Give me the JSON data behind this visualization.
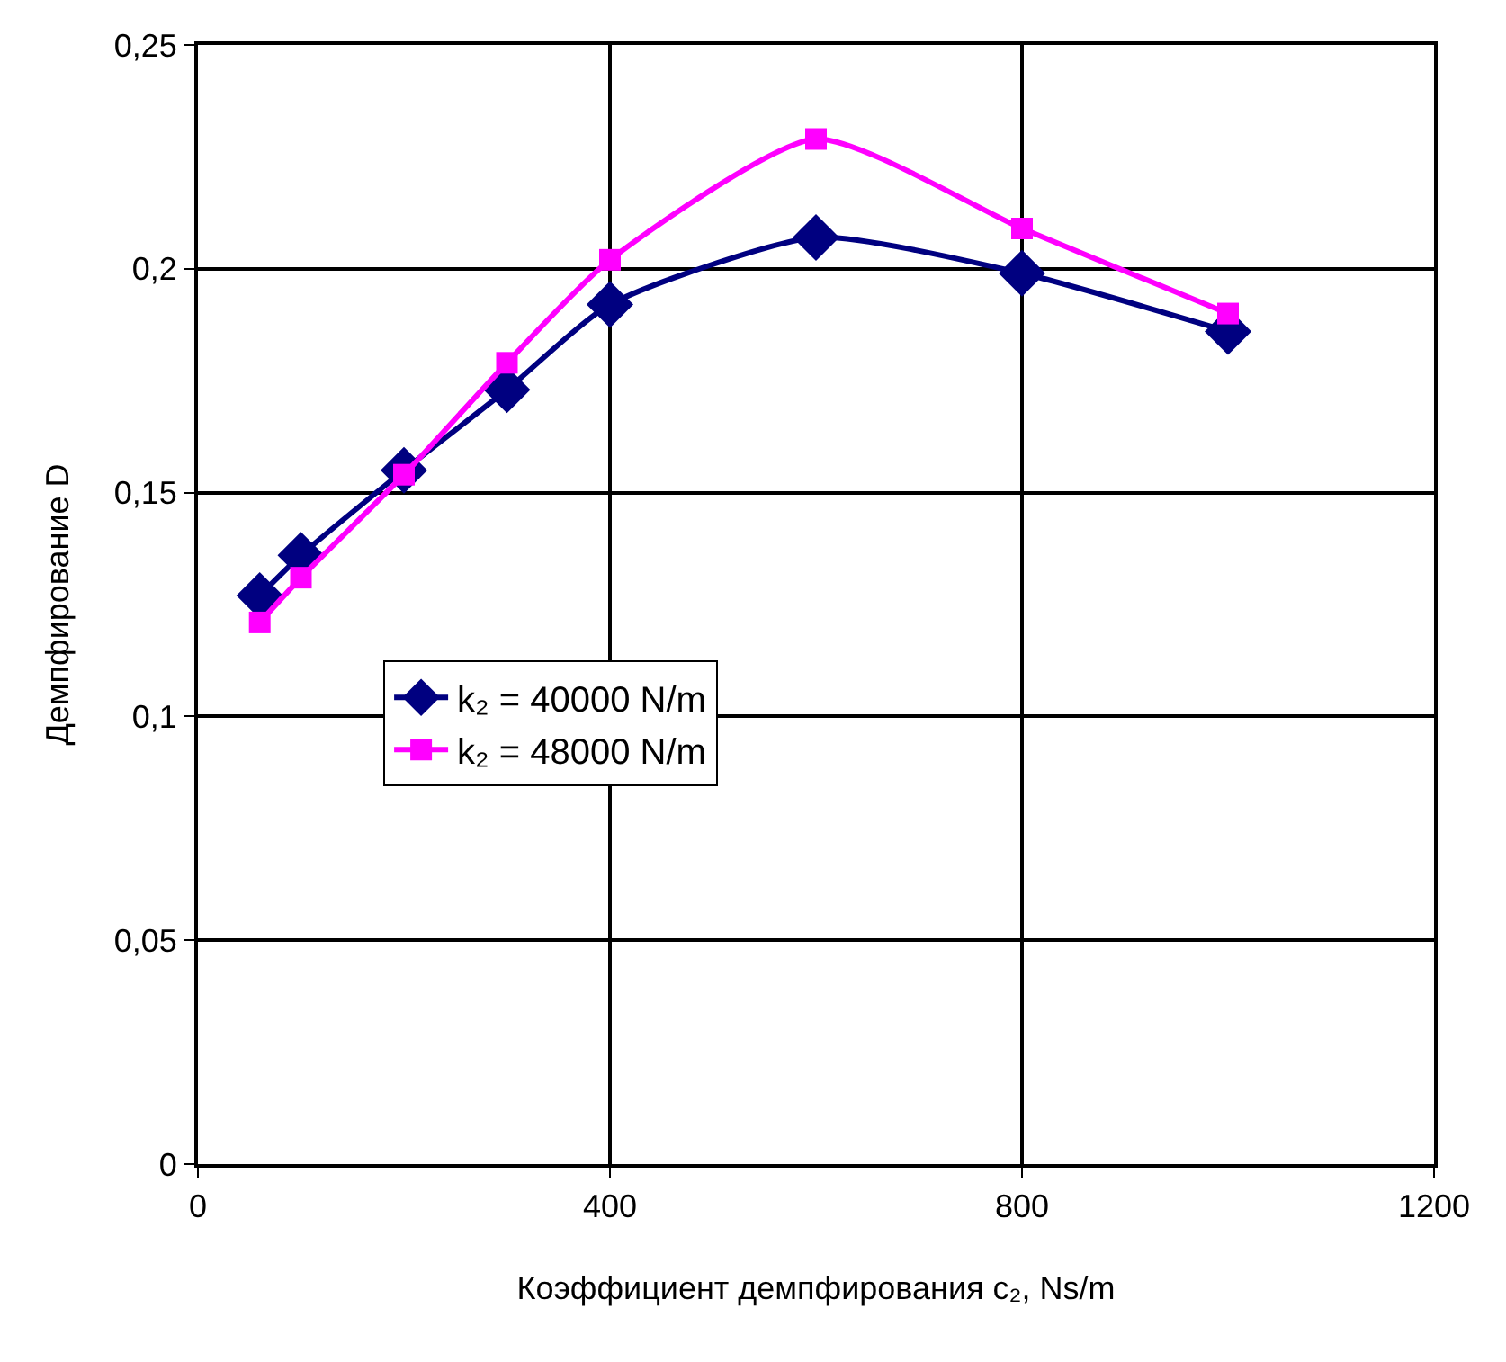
{
  "chart_data": {
    "type": "line",
    "xlabel": "Коэффициент демпфирования c₂, Ns/m",
    "ylabel": "Демпфирование D",
    "x": [
      60,
      100,
      200,
      300,
      400,
      600,
      800,
      1000
    ],
    "series": [
      {
        "name": "k₂ = 40000 N/m",
        "color": "#000080",
        "marker": "diamond",
        "values": [
          0.127,
          0.136,
          0.155,
          0.173,
          0.192,
          0.207,
          0.199,
          0.186
        ]
      },
      {
        "name": "k₂ = 48000 N/m",
        "color": "#ff00ff",
        "marker": "square",
        "values": [
          0.121,
          0.131,
          0.154,
          0.179,
          0.202,
          0.229,
          0.209,
          0.19
        ]
      }
    ],
    "xlim": [
      0,
      1200
    ],
    "xticks": [
      0,
      400,
      800,
      1200
    ],
    "ylim": [
      0,
      0.25
    ],
    "yticks": [
      0,
      {
        "value": 0.05,
        "label": "0,05"
      },
      {
        "value": 0.1,
        "label": "0,1"
      },
      {
        "value": 0.15,
        "label": "0,15"
      },
      {
        "value": 0.2,
        "label": "0,2"
      },
      {
        "value": 0.25,
        "label": "0,25"
      }
    ],
    "grid": true,
    "legend": "center left",
    "line_style": "solid"
  }
}
